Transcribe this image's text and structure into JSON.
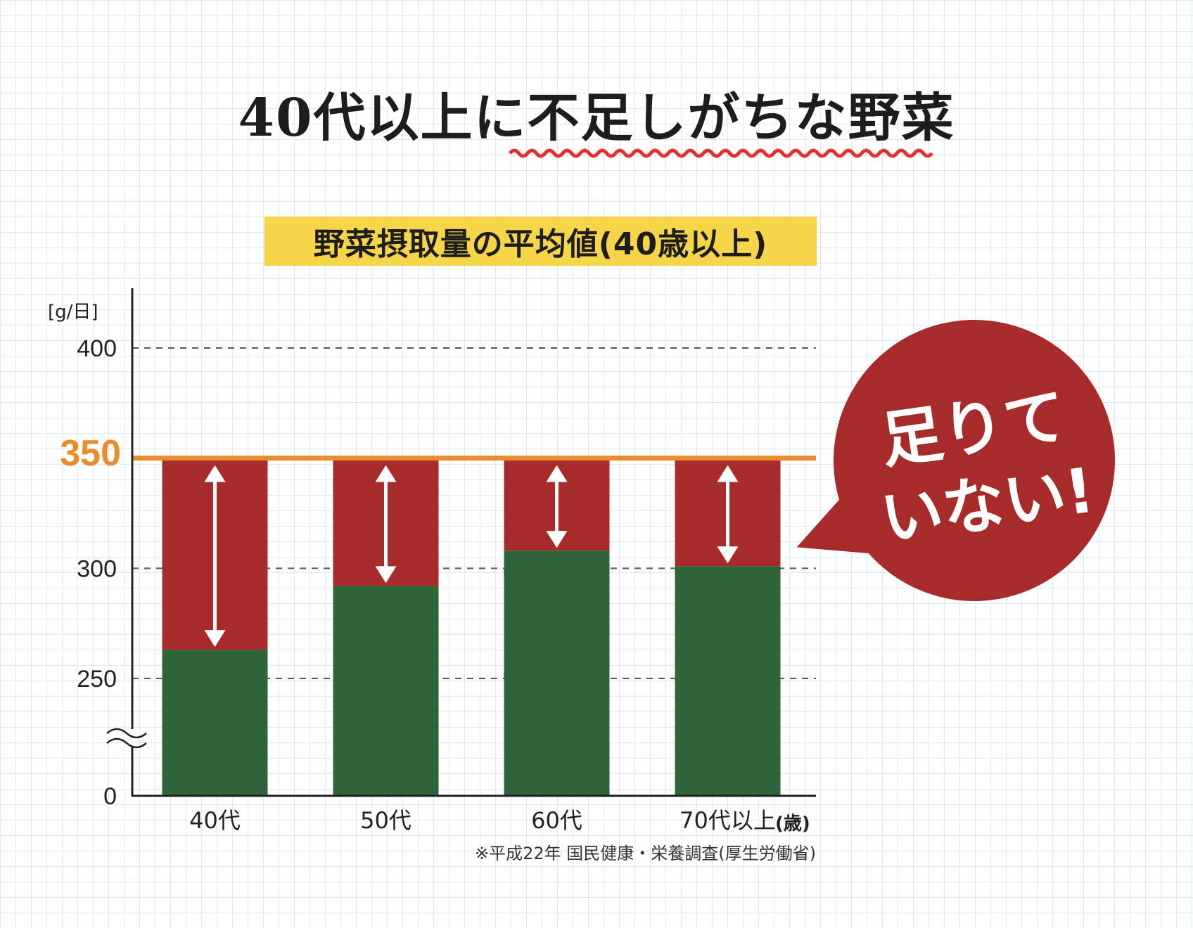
{
  "title": "40代以上に不足しがちな野菜",
  "colors": {
    "shortfall": "#a82b2b",
    "intake": "#2f6339",
    "target_line": "#eb8c2c",
    "subtitle_bg": "#f7d548",
    "callout": "#a82b2b",
    "wave_underline": "#e03030"
  },
  "callout": {
    "line1": "足りて",
    "line2": "いない!"
  },
  "footnote": "※平成22年 国民健康・栄養調査(厚生労働省)",
  "chart_data": {
    "type": "bar",
    "title": "野菜摂取量の平均値(40歳以上)",
    "ylabel": "[g/日]",
    "xlabel": "",
    "x_unit": "(歳)",
    "categories": [
      "40代",
      "50代",
      "60代",
      "70代以上"
    ],
    "series": [
      {
        "values": [
          263,
          292,
          308,
          301
        ]
      }
    ],
    "target": {
      "value": 350,
      "label": "350"
    },
    "yticks": [
      0,
      250,
      300,
      400
    ],
    "ylim": [
      0,
      400
    ],
    "axis_break": true,
    "grid": true,
    "shortfall_arrows": true
  }
}
